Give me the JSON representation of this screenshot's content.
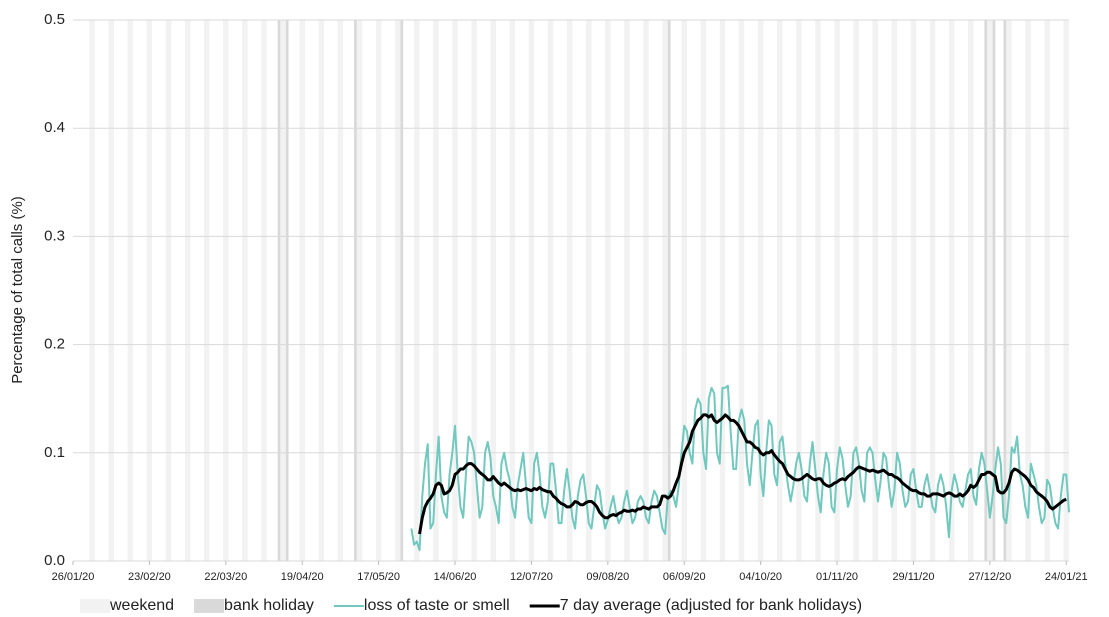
{
  "chart_data": {
    "type": "line",
    "y_label": "Percentage of total calls (%)",
    "ylim": [
      0,
      0.5
    ],
    "yticks": [
      {
        "value": 0,
        "label": "0.0"
      },
      0.1,
      0.2,
      0.3,
      0.4,
      0.5
    ],
    "xlim": [
      "26/01/20",
      "25/01/21"
    ],
    "xticks": [
      "26/01/20",
      "23/02/20",
      "22/03/20",
      "19/04/20",
      "17/05/20",
      "14/06/20",
      "12/07/20",
      "09/08/20",
      "06/09/20",
      "04/10/20",
      "01/11/20",
      "29/11/20",
      "27/12/20",
      "24/01/21"
    ],
    "grid": true,
    "shading": [
      {
        "name": "weekend",
        "color": "#f2f2f2"
      },
      {
        "name": "bank holiday",
        "color": "#d9d9d9"
      }
    ],
    "bank_holidays": [
      "10/04/20",
      "13/04/20",
      "08/05/20",
      "25/05/20",
      "31/08/20",
      "25/12/20",
      "28/12/20",
      "01/01/21"
    ],
    "x": [
      "29/05/20",
      "30/05/20",
      "31/05/20",
      "01/06/20",
      "02/06/20",
      "03/06/20",
      "04/06/20",
      "05/06/20",
      "06/06/20",
      "07/06/20",
      "08/06/20",
      "09/06/20",
      "10/06/20",
      "11/06/20",
      "12/06/20",
      "13/06/20",
      "14/06/20",
      "15/06/20",
      "16/06/20",
      "17/06/20",
      "18/06/20",
      "19/06/20",
      "20/06/20",
      "21/06/20",
      "22/06/20",
      "23/06/20",
      "24/06/20",
      "25/06/20",
      "26/06/20",
      "27/06/20",
      "28/06/20",
      "29/06/20",
      "30/06/20",
      "01/07/20",
      "02/07/20",
      "03/07/20",
      "04/07/20",
      "05/07/20",
      "06/07/20",
      "07/07/20",
      "08/07/20",
      "09/07/20",
      "10/07/20",
      "11/07/20",
      "12/07/20",
      "13/07/20",
      "14/07/20",
      "15/07/20",
      "16/07/20",
      "17/07/20",
      "18/07/20",
      "19/07/20",
      "20/07/20",
      "21/07/20",
      "22/07/20",
      "23/07/20",
      "24/07/20",
      "25/07/20",
      "26/07/20",
      "27/07/20",
      "28/07/20",
      "29/07/20",
      "30/07/20",
      "31/07/20",
      "01/08/20",
      "02/08/20",
      "03/08/20",
      "04/08/20",
      "05/08/20",
      "06/08/20",
      "07/08/20",
      "08/08/20",
      "09/08/20",
      "10/08/20",
      "11/08/20",
      "12/08/20",
      "13/08/20",
      "14/08/20",
      "15/08/20",
      "16/08/20",
      "17/08/20",
      "18/08/20",
      "19/08/20",
      "20/08/20",
      "21/08/20",
      "22/08/20",
      "23/08/20",
      "24/08/20",
      "25/08/20",
      "26/08/20",
      "27/08/20",
      "28/08/20",
      "29/08/20",
      "30/08/20",
      "31/08/20",
      "01/09/20",
      "02/09/20",
      "03/09/20",
      "04/09/20",
      "05/09/20",
      "06/09/20",
      "07/09/20",
      "08/09/20",
      "09/09/20",
      "10/09/20",
      "11/09/20",
      "12/09/20",
      "13/09/20",
      "14/09/20",
      "15/09/20",
      "16/09/20",
      "17/09/20",
      "18/09/20",
      "19/09/20",
      "20/09/20",
      "21/09/20",
      "22/09/20",
      "23/09/20",
      "24/09/20",
      "25/09/20",
      "26/09/20",
      "27/09/20",
      "28/09/20",
      "29/09/20",
      "30/09/20",
      "01/10/20",
      "02/10/20",
      "03/10/20",
      "04/10/20",
      "05/10/20",
      "06/10/20",
      "07/10/20",
      "08/10/20",
      "09/10/20",
      "10/10/20",
      "11/10/20",
      "12/10/20",
      "13/10/20",
      "14/10/20",
      "15/10/20",
      "16/10/20",
      "17/10/20",
      "18/10/20",
      "19/10/20",
      "20/10/20",
      "21/10/20",
      "22/10/20",
      "23/10/20",
      "24/10/20",
      "25/10/20",
      "26/10/20",
      "27/10/20",
      "28/10/20",
      "29/10/20",
      "30/10/20",
      "31/10/20",
      "01/11/20",
      "02/11/20",
      "03/11/20",
      "04/11/20",
      "05/11/20",
      "06/11/20",
      "07/11/20",
      "08/11/20",
      "09/11/20",
      "10/11/20",
      "11/11/20",
      "12/11/20",
      "13/11/20",
      "14/11/20",
      "15/11/20",
      "16/11/20",
      "17/11/20",
      "18/11/20",
      "19/11/20",
      "20/11/20",
      "21/11/20",
      "22/11/20",
      "23/11/20",
      "24/11/20",
      "25/11/20",
      "26/11/20",
      "27/11/20",
      "28/11/20",
      "29/11/20",
      "30/11/20",
      "01/12/20",
      "02/12/20",
      "03/12/20",
      "04/12/20",
      "05/12/20",
      "06/12/20",
      "07/12/20",
      "08/12/20",
      "09/12/20",
      "10/12/20",
      "11/12/20",
      "12/12/20",
      "13/12/20",
      "14/12/20",
      "15/12/20",
      "16/12/20",
      "17/12/20",
      "18/12/20",
      "19/12/20",
      "20/12/20",
      "21/12/20",
      "22/12/20",
      "23/12/20",
      "24/12/20",
      "25/12/20",
      "26/12/20",
      "27/12/20",
      "28/12/20",
      "29/12/20",
      "30/12/20",
      "31/12/20",
      "01/01/21",
      "02/01/21",
      "03/01/21",
      "04/01/21",
      "05/01/21",
      "06/01/21",
      "07/01/21",
      "08/01/21",
      "09/01/21",
      "10/01/21",
      "11/01/21",
      "12/01/21",
      "13/01/21",
      "14/01/21",
      "15/01/21",
      "16/01/21",
      "17/01/21",
      "18/01/21",
      "19/01/21",
      "20/01/21",
      "21/01/21",
      "22/01/21",
      "23/01/21",
      "24/01/21",
      "25/01/21"
    ],
    "series": [
      {
        "name": "loss of taste or smell",
        "color": "#70c8be",
        "width": 2,
        "values": [
          0.03,
          0.015,
          0.018,
          0.01,
          0.06,
          0.09,
          0.108,
          0.03,
          0.035,
          0.08,
          0.115,
          0.06,
          0.045,
          0.04,
          0.08,
          0.1,
          0.125,
          0.08,
          0.05,
          0.04,
          0.08,
          0.115,
          0.11,
          0.1,
          0.07,
          0.04,
          0.05,
          0.1,
          0.11,
          0.095,
          0.06,
          0.05,
          0.035,
          0.09,
          0.1,
          0.085,
          0.075,
          0.05,
          0.04,
          0.07,
          0.085,
          0.1,
          0.07,
          0.04,
          0.035,
          0.09,
          0.1,
          0.08,
          0.05,
          0.04,
          0.055,
          0.09,
          0.09,
          0.065,
          0.035,
          0.035,
          0.065,
          0.085,
          0.065,
          0.04,
          0.03,
          0.06,
          0.075,
          0.08,
          0.06,
          0.035,
          0.03,
          0.05,
          0.07,
          0.065,
          0.045,
          0.03,
          0.038,
          0.05,
          0.06,
          0.045,
          0.035,
          0.04,
          0.055,
          0.065,
          0.05,
          0.035,
          0.04,
          0.055,
          0.06,
          0.055,
          0.04,
          0.035,
          0.055,
          0.065,
          0.06,
          0.045,
          0.03,
          0.025,
          0.06,
          0.065,
          0.06,
          0.05,
          0.07,
          0.1,
          0.125,
          0.12,
          0.1,
          0.09,
          0.14,
          0.15,
          0.145,
          0.1,
          0.085,
          0.15,
          0.16,
          0.155,
          0.1,
          0.09,
          0.16,
          0.16,
          0.162,
          0.12,
          0.085,
          0.085,
          0.13,
          0.14,
          0.13,
          0.09,
          0.07,
          0.1,
          0.125,
          0.13,
          0.08,
          0.06,
          0.1,
          0.13,
          0.125,
          0.08,
          0.07,
          0.11,
          0.115,
          0.09,
          0.07,
          0.055,
          0.07,
          0.09,
          0.1,
          0.085,
          0.06,
          0.055,
          0.09,
          0.11,
          0.085,
          0.06,
          0.045,
          0.08,
          0.1,
          0.09,
          0.05,
          0.045,
          0.085,
          0.105,
          0.095,
          0.07,
          0.05,
          0.06,
          0.1,
          0.105,
          0.09,
          0.065,
          0.055,
          0.1,
          0.105,
          0.1,
          0.075,
          0.055,
          0.075,
          0.1,
          0.095,
          0.07,
          0.05,
          0.065,
          0.1,
          0.09,
          0.065,
          0.05,
          0.055,
          0.08,
          0.085,
          0.065,
          0.05,
          0.05,
          0.07,
          0.08,
          0.065,
          0.05,
          0.045,
          0.07,
          0.08,
          0.07,
          0.05,
          0.022,
          0.065,
          0.08,
          0.07,
          0.055,
          0.05,
          0.065,
          0.08,
          0.085,
          0.06,
          0.052,
          0.085,
          0.1,
          0.09,
          0.065,
          0.04,
          0.06,
          0.085,
          0.105,
          0.09,
          0.04,
          0.035,
          0.06,
          0.105,
          0.1,
          0.115,
          0.08,
          0.07,
          0.05,
          0.04,
          0.09,
          0.08,
          0.07,
          0.05,
          0.035,
          0.04,
          0.075,
          0.07,
          0.05,
          0.035,
          0.03,
          0.06,
          0.08,
          0.08,
          0.045
        ]
      },
      {
        "name": "7 day average (adjusted for bank holidays)",
        "color": "#000000",
        "width": 3,
        "values": [
          null,
          null,
          null,
          0.025,
          0.04,
          0.05,
          0.055,
          0.058,
          0.062,
          0.07,
          0.072,
          0.07,
          0.062,
          0.063,
          0.065,
          0.07,
          0.08,
          0.082,
          0.085,
          0.085,
          0.088,
          0.09,
          0.09,
          0.088,
          0.085,
          0.082,
          0.08,
          0.078,
          0.075,
          0.075,
          0.078,
          0.075,
          0.072,
          0.07,
          0.072,
          0.07,
          0.068,
          0.066,
          0.065,
          0.066,
          0.065,
          0.066,
          0.067,
          0.066,
          0.065,
          0.067,
          0.066,
          0.068,
          0.066,
          0.065,
          0.064,
          0.064,
          0.06,
          0.058,
          0.055,
          0.053,
          0.052,
          0.05,
          0.05,
          0.052,
          0.055,
          0.054,
          0.052,
          0.052,
          0.054,
          0.055,
          0.055,
          0.053,
          0.05,
          0.045,
          0.042,
          0.04,
          0.04,
          0.042,
          0.043,
          0.042,
          0.044,
          0.045,
          0.047,
          0.046,
          0.046,
          0.047,
          0.046,
          0.048,
          0.048,
          0.05,
          0.049,
          0.048,
          0.05,
          0.05,
          0.05,
          0.052,
          0.06,
          0.06,
          0.058,
          0.06,
          0.065,
          0.072,
          0.078,
          0.09,
          0.1,
          0.105,
          0.11,
          0.12,
          0.125,
          0.13,
          0.132,
          0.135,
          0.135,
          0.133,
          0.135,
          0.13,
          0.128,
          0.13,
          0.132,
          0.135,
          0.133,
          0.13,
          0.13,
          0.128,
          0.125,
          0.12,
          0.115,
          0.11,
          0.11,
          0.108,
          0.105,
          0.104,
          0.1,
          0.098,
          0.1,
          0.1,
          0.102,
          0.098,
          0.095,
          0.092,
          0.09,
          0.085,
          0.08,
          0.078,
          0.076,
          0.075,
          0.075,
          0.076,
          0.078,
          0.08,
          0.078,
          0.076,
          0.075,
          0.076,
          0.076,
          0.072,
          0.07,
          0.069,
          0.07,
          0.072,
          0.073,
          0.075,
          0.076,
          0.075,
          0.078,
          0.08,
          0.082,
          0.085,
          0.087,
          0.086,
          0.085,
          0.084,
          0.083,
          0.084,
          0.083,
          0.082,
          0.083,
          0.084,
          0.082,
          0.08,
          0.08,
          0.078,
          0.077,
          0.075,
          0.072,
          0.07,
          0.068,
          0.066,
          0.065,
          0.065,
          0.063,
          0.062,
          0.062,
          0.06,
          0.06,
          0.062,
          0.062,
          0.062,
          0.061,
          0.06,
          0.062,
          0.063,
          0.062,
          0.06,
          0.06,
          0.062,
          0.06,
          0.062,
          0.065,
          0.07,
          0.068,
          0.07,
          0.075,
          0.08,
          0.08,
          0.082,
          0.082,
          0.08,
          0.078,
          0.065,
          0.063,
          0.063,
          0.066,
          0.072,
          0.082,
          0.085,
          0.084,
          0.082,
          0.08,
          0.078,
          0.075,
          0.07,
          0.068,
          0.064,
          0.062,
          0.06,
          0.058,
          0.055,
          0.05,
          0.048,
          0.05,
          0.052,
          0.054,
          0.056,
          0.057,
          null
        ]
      }
    ]
  }
}
